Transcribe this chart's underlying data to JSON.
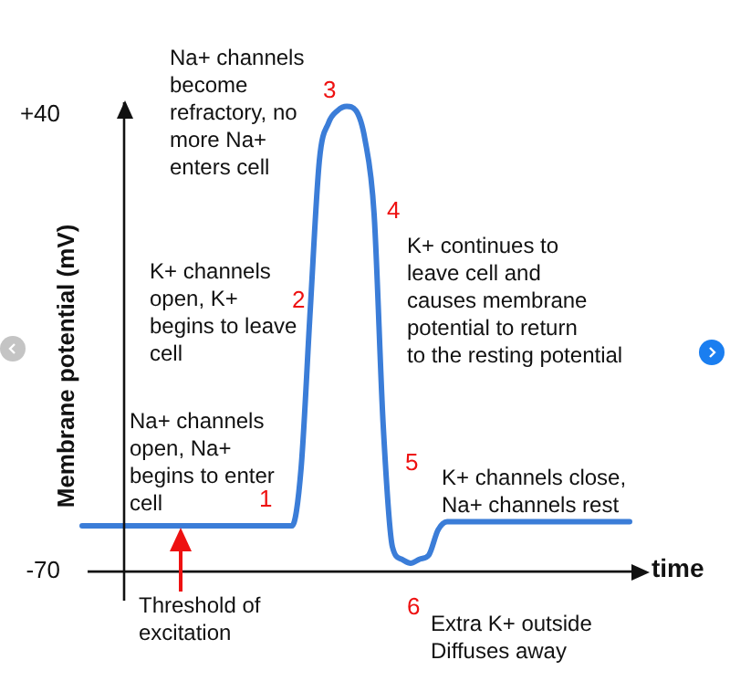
{
  "chart_data": {
    "type": "line",
    "ylabel": "Membrane potential (mV)",
    "xlabel": "time",
    "categories": [
      null,
      null,
      null,
      null,
      null,
      null,
      null,
      null,
      null,
      null,
      null,
      null,
      null,
      null,
      null,
      null,
      null,
      null,
      null,
      null,
      null,
      null,
      null,
      null,
      null,
      null,
      null,
      null,
      null,
      null,
      null,
      null,
      null,
      null,
      null,
      null,
      null,
      null,
      null,
      null,
      null,
      null,
      null,
      null,
      null,
      null,
      null,
      null,
      null,
      null,
      null,
      null,
      null,
      null,
      null,
      null,
      null,
      null,
      null,
      null,
      null
    ],
    "series": [
      {
        "color": "#3b7dd8",
        "values": [
          -59,
          -59,
          -59,
          -59,
          -59,
          -59,
          -59,
          -59,
          -59,
          -59,
          -59,
          -59,
          -59,
          -59,
          -59,
          -59,
          -59,
          -59,
          -59,
          -59,
          -59,
          -59,
          -59,
          -59,
          -45,
          -7,
          29,
          38,
          41,
          42,
          41,
          34,
          16,
          -35,
          -64,
          -67,
          -68,
          -67,
          -66,
          -60,
          -58,
          -58,
          -58,
          -58,
          -58,
          -58,
          -58,
          -58,
          -58,
          -58,
          -58,
          -58,
          -58,
          -58,
          -58,
          -58,
          -58,
          -58,
          -58,
          -58,
          -58
        ]
      }
    ],
    "ylim": [
      -77,
      43
    ],
    "yticks": [
      {
        "value": 40,
        "label": "+40"
      },
      -70
    ],
    "marker": "none",
    "line_style": "solid",
    "annotations": [
      "Na+ channels\nbecome\nrefractory, no\nmore Na+\nenters cell",
      "3",
      "K+ channels\nopen, K+\nbegins to leave\ncell",
      "2",
      "Na+ channels\nopen, Na+\nbegins to enter\ncell",
      "1",
      "Threshold of\nexcitation",
      "4",
      "K+ continues to\nleave cell and\ncauses membrane\npotential to return\nto the resting potential",
      "5",
      "K+ channels close,\nNa+ channels rest",
      "6",
      "Extra K+ outside\nDiffuses away"
    ]
  }
}
